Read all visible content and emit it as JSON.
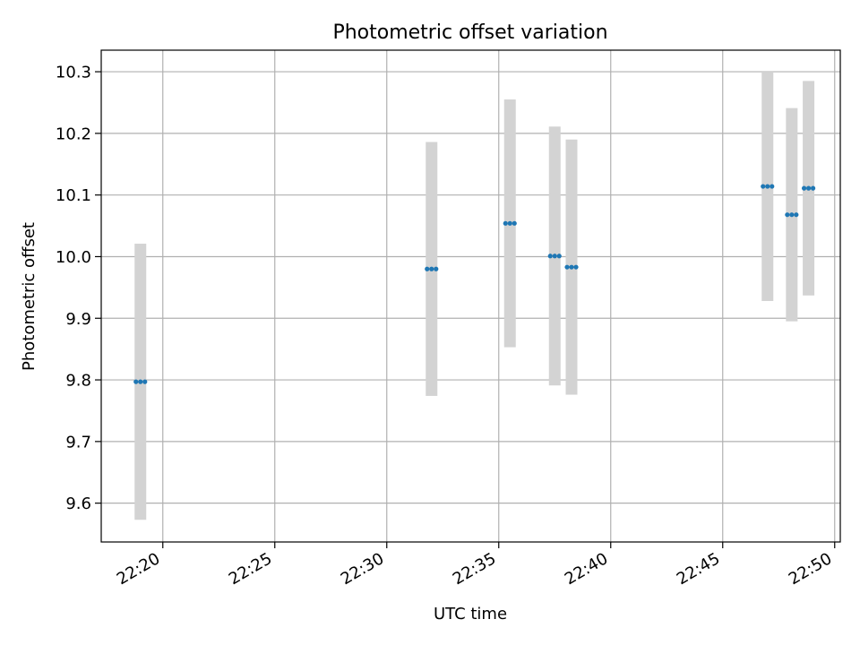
{
  "chart_data": {
    "type": "scatter",
    "title": "Photometric offset variation",
    "xlabel": "UTC time",
    "ylabel": "Photometric offset",
    "x_axis_kind": "time",
    "xlim": [
      "22:17:15",
      "22:50:15"
    ],
    "ylim": [
      9.537,
      10.335
    ],
    "grid": true,
    "x_ticks": [
      "22:20",
      "22:25",
      "22:30",
      "22:35",
      "22:40",
      "22:45",
      "22:50"
    ],
    "y_ticks": [
      "9.6",
      "9.7",
      "9.8",
      "9.9",
      "10.0",
      "10.1",
      "10.2",
      "10.3"
    ],
    "colors": {
      "points": "#1f77b4",
      "errorbars": "#d3d3d3",
      "grid": "#b0b0b0"
    },
    "points": [
      {
        "x": "22:19:00",
        "y": 9.797,
        "yerr": 0.224
      },
      {
        "x": "22:32:00",
        "y": 9.98,
        "yerr": 0.206
      },
      {
        "x": "22:35:30",
        "y": 10.054,
        "yerr": 0.201
      },
      {
        "x": "22:37:30",
        "y": 10.001,
        "yerr": 0.21
      },
      {
        "x": "22:38:15",
        "y": 9.983,
        "yerr": 0.207
      },
      {
        "x": "22:47:00",
        "y": 10.114,
        "yerr": 0.186
      },
      {
        "x": "22:48:05",
        "y": 10.068,
        "yerr": 0.173
      },
      {
        "x": "22:48:50",
        "y": 10.111,
        "yerr": 0.174
      }
    ]
  }
}
